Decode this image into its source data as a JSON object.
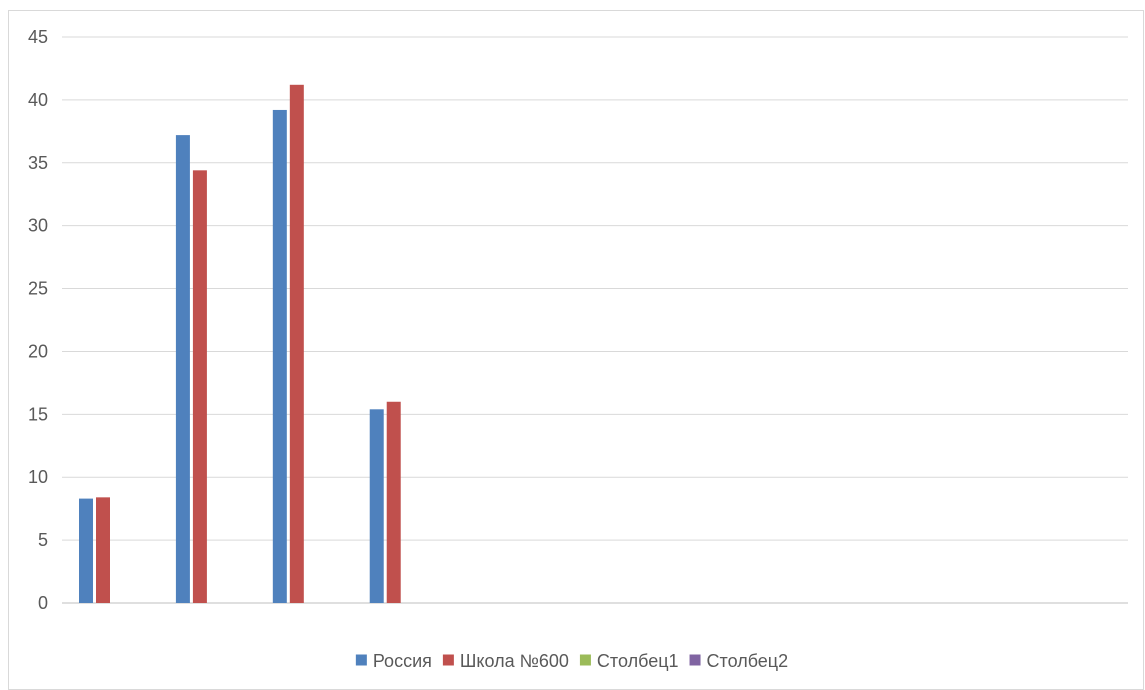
{
  "chart_data": {
    "type": "bar",
    "categories": [
      "",
      "",
      "",
      "",
      "",
      "",
      "",
      "",
      "",
      "",
      ""
    ],
    "series": [
      {
        "name": "Россия",
        "color": "#4f81bd",
        "values": [
          8.3,
          37.2,
          39.2,
          15.4,
          null,
          null,
          null,
          null,
          null,
          null,
          null
        ]
      },
      {
        "name": "Школа №600",
        "color": "#c0504d",
        "values": [
          8.4,
          34.4,
          41.2,
          16.0,
          null,
          null,
          null,
          null,
          null,
          null,
          null
        ]
      },
      {
        "name": "Столбец1",
        "color": "#9bbb59",
        "values": [
          null,
          null,
          null,
          null,
          null,
          null,
          null,
          null,
          null,
          null,
          null
        ]
      },
      {
        "name": "Столбец2",
        "color": "#8064a2",
        "values": [
          null,
          null,
          null,
          null,
          null,
          null,
          null,
          null,
          null,
          null,
          null
        ]
      }
    ],
    "ylim": [
      0,
      45
    ],
    "y_ticks": [
      "0",
      "5",
      "10",
      "15",
      "20",
      "25",
      "30",
      "35",
      "40",
      "45"
    ],
    "grid": true,
    "legend_position": "bottom",
    "title": "",
    "xlabel": "",
    "ylabel": ""
  }
}
